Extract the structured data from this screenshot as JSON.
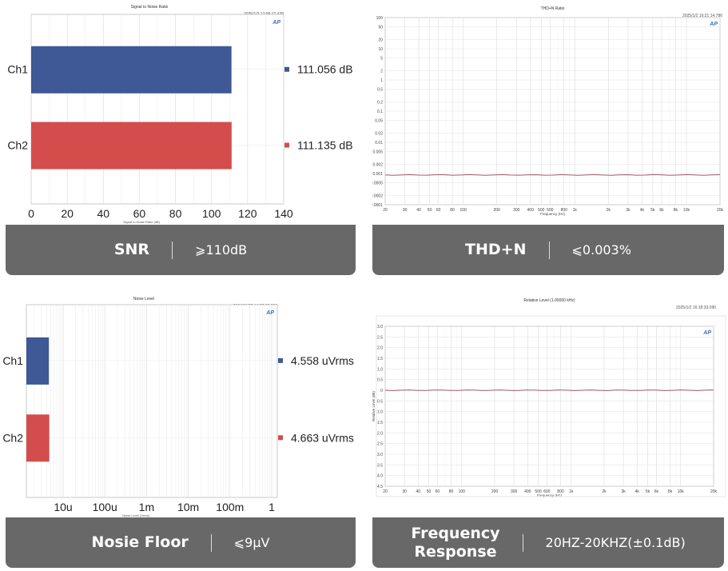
{
  "colors": {
    "ch1": "#3f5896",
    "ch2": "#d34d4d",
    "banner": "#686868",
    "trace": "#a05a6a"
  },
  "snr": {
    "title": "Signal to Noise Ratio",
    "timestamp": "2025/1/2 17:09:12.428",
    "xlabel": "Signal to Noise Ratio (dB)",
    "ticks": [
      "0",
      "20",
      "40",
      "60",
      "80",
      "100",
      "120",
      "140"
    ],
    "channels": [
      {
        "name": "Ch1",
        "value": 111.056,
        "label": "111.056 dB"
      },
      {
        "name": "Ch2",
        "value": 111.135,
        "label": "111.135 dB"
      }
    ],
    "banner": {
      "key": "SNR",
      "value": "⩾110dB"
    }
  },
  "thd": {
    "title": "THD+N Ratio",
    "timestamp": "2025/1/2 16:21:14.786",
    "xlabel": "Frequency (Hz)",
    "yticks": [
      "100",
      "50",
      "20",
      "10",
      "5",
      "2",
      "1",
      "0.5",
      "0.2",
      "0.1",
      "0.05",
      "0.02",
      "0.01",
      "0.005",
      "0.002",
      "0.001",
      "0.0005",
      "0.0002",
      "0.0001"
    ],
    "xticks": [
      "20",
      "30",
      "40",
      "50",
      "60",
      "80",
      "100",
      "200",
      "300",
      "400",
      "500",
      "600",
      "800",
      "1k",
      "2k",
      "3k",
      "4k",
      "5k",
      "6k",
      "8k",
      "10k",
      "20k"
    ],
    "level": 0.0009,
    "banner": {
      "key": "THD+N",
      "value": "⩽0.003%"
    }
  },
  "noise": {
    "title": "Noise Level",
    "timestamp": "2024/11/25 14:27:05.396",
    "xlabel": "Noise Level (Vrms)",
    "ticks": [
      "10u",
      "100u",
      "1m",
      "10m",
      "100m",
      "1"
    ],
    "channels": [
      {
        "name": "Ch1",
        "value": 4.558e-06,
        "label": "4.558  uVrms"
      },
      {
        "name": "Ch2",
        "value": 4.663e-06,
        "label": "4.663  uVrms"
      }
    ],
    "banner": {
      "key": "Nosie Floor",
      "value": "⩽9μV"
    }
  },
  "fr": {
    "title": "Relative Level (1.00000 kHz)",
    "timestamp": "2025/1/2 16:18:33.090",
    "xlabel": "Frequency (Hz)",
    "ylabel": "Relative Level (dB)",
    "yticks": [
      "3.0",
      "2.5",
      "2.0",
      "1.5",
      "1.0",
      "0.5",
      "0",
      "-0.5",
      "-1.0",
      "-1.5",
      "-2.0",
      "-2.5",
      "-3.0",
      "-3.5",
      "-4.0",
      "-4.5"
    ],
    "xticks": [
      "20",
      "30",
      "40",
      "50",
      "60",
      "80",
      "100",
      "200",
      "300",
      "400",
      "500",
      "600",
      "800",
      "1k",
      "2k",
      "3k",
      "4k",
      "5k",
      "6k",
      "8k",
      "10k",
      "20k"
    ],
    "level": 0,
    "banner": {
      "key": "Frequency\nResponse",
      "value": "20HZ-20KHZ(±0.1dB)"
    }
  }
}
